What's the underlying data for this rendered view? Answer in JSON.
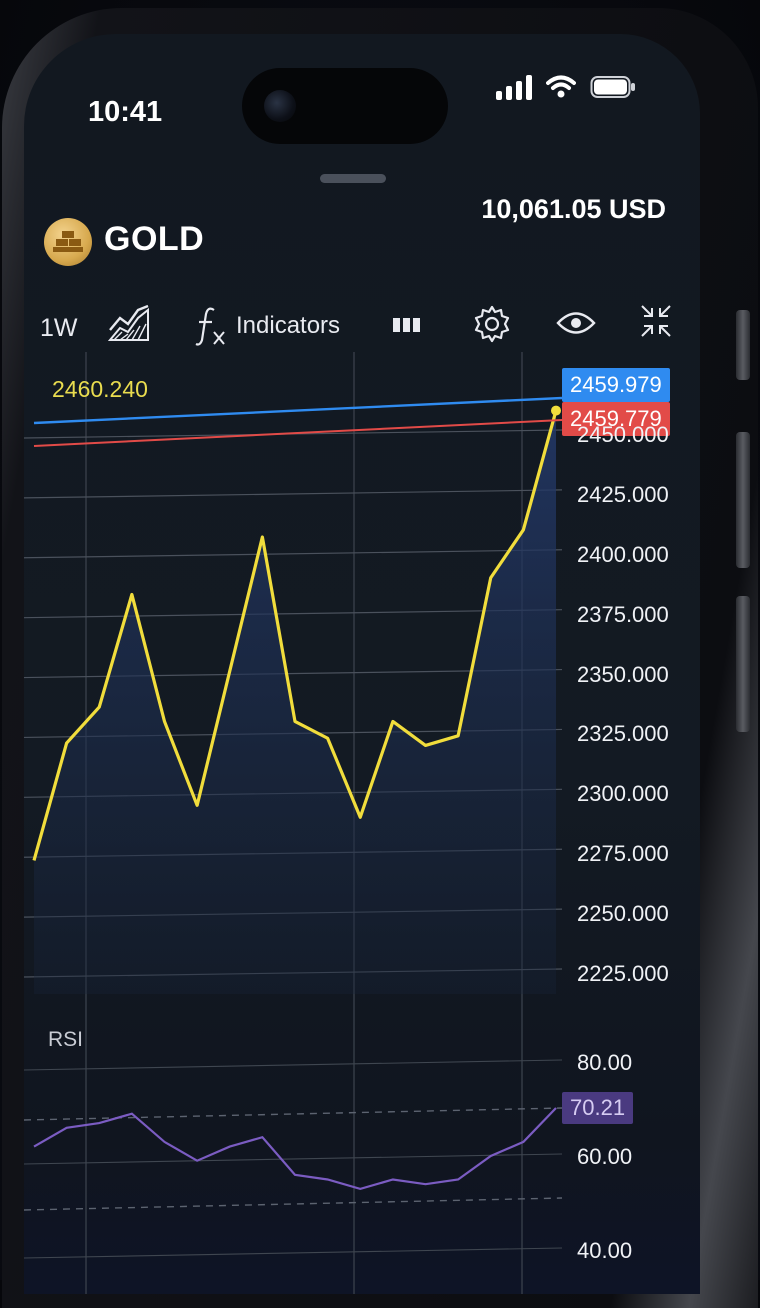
{
  "status_bar": {
    "time": "10:41"
  },
  "header": {
    "instrument": "GOLD",
    "instrument_icon": "gold-bars-icon",
    "balance": "10,061.05 USD"
  },
  "toolbar": {
    "timeframe": "1W",
    "chart_type_icon": "area-chart-icon",
    "indicators_label": "Indicators",
    "indicators_icon": "function-fx-icon",
    "candles_icon": "bar-columns-icon",
    "settings_icon": "gear-icon",
    "visibility_icon": "eye-icon",
    "collapse_icon": "collapse-arrows-icon"
  },
  "chart": {
    "high_label": "2460.240",
    "ask_price": "2459.979",
    "bid_price": "2459.779",
    "ask_color": "#2f8bf0",
    "bid_color": "#e24b48",
    "line_color": "#f1dd3c",
    "y_ticks": [
      "2450.000",
      "2425.000",
      "2400.000",
      "2375.000",
      "2350.000",
      "2325.000",
      "2300.000",
      "2275.000",
      "2250.000",
      "2225.000"
    ]
  },
  "rsi": {
    "label": "RSI",
    "y_ticks": [
      "80.00",
      "60.00",
      "40.00"
    ],
    "current": "70.21",
    "color": "#7b5cc2"
  },
  "chart_data": {
    "type": "area",
    "series": [
      {
        "values": [
          2272,
          2321,
          2336,
          2383,
          2330,
          2295,
          2351,
          2407,
          2330,
          2323,
          2290,
          2330,
          2320,
          2324,
          2390,
          2410,
          2459.779
        ]
      }
    ],
    "ylim": [
      2225,
      2460
    ],
    "rsi_values": [
      62,
      66,
      67,
      69,
      63,
      59,
      62,
      64,
      56,
      55,
      53,
      55,
      54,
      55,
      60,
      63,
      70.21
    ],
    "rsi_ylim": [
      40,
      80
    ]
  }
}
